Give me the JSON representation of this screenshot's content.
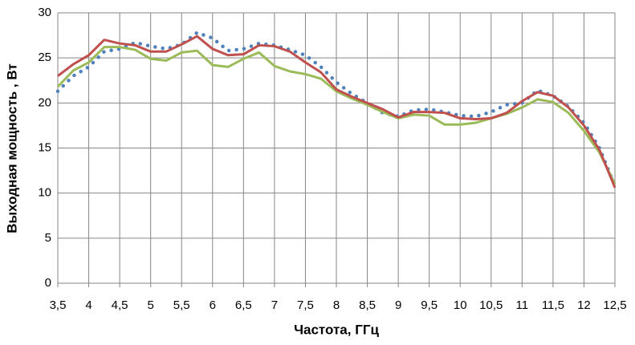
{
  "chart_data": {
    "type": "line",
    "xlabel": "Частота, ГГц",
    "ylabel": "Выходная мощность , Вт",
    "x": [
      3.5,
      3.75,
      4,
      4.25,
      4.5,
      4.75,
      5,
      5.25,
      5.5,
      5.75,
      6,
      6.25,
      6.5,
      6.75,
      7,
      7.25,
      7.5,
      7.75,
      8,
      8.25,
      8.5,
      8.75,
      9,
      9.25,
      9.5,
      9.75,
      10,
      10.25,
      10.5,
      10.75,
      11,
      11.25,
      11.5,
      11.75,
      12,
      12.25,
      12.5
    ],
    "series": [
      {
        "color": "#4f81bd",
        "dotted": true,
        "values": [
          21.3,
          23.0,
          24.0,
          25.7,
          26.0,
          26.7,
          26.3,
          26.0,
          26.5,
          27.8,
          27.2,
          25.8,
          26.0,
          26.6,
          26.4,
          25.9,
          25.3,
          24.0,
          22.3,
          21.0,
          20.0,
          18.9,
          18.5,
          19.2,
          19.3,
          19.0,
          18.6,
          18.5,
          19.0,
          19.8,
          20.0,
          21.4,
          20.8,
          19.6,
          17.8,
          15.0,
          10.8
        ]
      },
      {
        "color": "#9bbb59",
        "dotted": false,
        "values": [
          21.8,
          23.6,
          24.5,
          26.2,
          26.2,
          25.9,
          24.9,
          24.7,
          25.6,
          25.8,
          24.2,
          24.0,
          24.9,
          25.6,
          24.1,
          23.5,
          23.2,
          22.7,
          21.3,
          20.5,
          19.8,
          19.0,
          18.3,
          18.7,
          18.6,
          17.6,
          17.6,
          17.8,
          18.3,
          18.8,
          19.5,
          20.4,
          20.1,
          18.9,
          16.9,
          14.5,
          11.0
        ]
      },
      {
        "color": "#c0504d",
        "dotted": false,
        "values": [
          23.0,
          24.3,
          25.3,
          27.0,
          26.6,
          26.4,
          25.7,
          25.7,
          26.5,
          27.4,
          26.0,
          25.3,
          25.4,
          26.4,
          26.3,
          25.7,
          24.5,
          23.4,
          21.5,
          20.7,
          20.0,
          19.3,
          18.4,
          19.0,
          19.0,
          18.9,
          18.3,
          18.2,
          18.3,
          18.9,
          20.2,
          21.2,
          20.8,
          19.5,
          17.5,
          14.8,
          10.6
        ]
      }
    ],
    "xlim": [
      3.5,
      12.5
    ],
    "xticks": [
      {
        "value": 3.5,
        "label": "3,5"
      },
      4,
      {
        "value": 4.5,
        "label": "4,5"
      },
      5,
      {
        "value": 5.5,
        "label": "5,5"
      },
      6,
      {
        "value": 6.5,
        "label": "6,5"
      },
      7,
      {
        "value": 7.5,
        "label": "7,5"
      },
      8,
      {
        "value": 8.5,
        "label": "8,5"
      },
      9,
      {
        "value": 9.5,
        "label": "9,5"
      },
      10,
      {
        "value": 10.5,
        "label": "10,5"
      },
      11,
      {
        "value": 11.5,
        "label": "11,5"
      },
      12,
      {
        "value": 12.5,
        "label": "12,5"
      }
    ],
    "ylim": [
      0,
      30
    ],
    "yticks": [
      0,
      5,
      10,
      15,
      20,
      25,
      30
    ],
    "grid": true
  }
}
